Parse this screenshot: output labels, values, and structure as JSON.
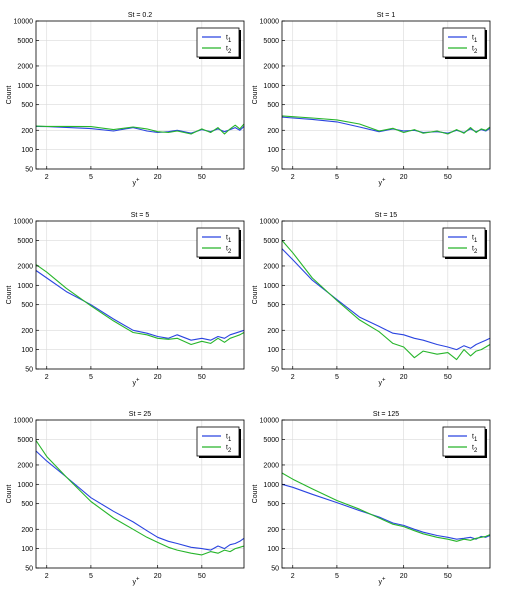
{
  "chart_data": [
    {
      "type": "line",
      "title": "St = 0.2",
      "xlabel": "y+",
      "ylabel": "Count",
      "xscale": "log",
      "yscale": "log",
      "xlim": [
        1.6,
        120
      ],
      "ylim": [
        50,
        10000
      ],
      "xticks": [
        2,
        5,
        20,
        50
      ],
      "yticks": [
        50,
        100,
        200,
        500,
        1000,
        2000,
        5000,
        10000
      ],
      "grid": true,
      "legend_position": "top-right",
      "series": [
        {
          "name": "t1",
          "color": "#2a44e0",
          "x": [
            1.6,
            2,
            3,
            5,
            8,
            12,
            16,
            20,
            25,
            30,
            40,
            50,
            60,
            70,
            80,
            90,
            100,
            110,
            120
          ],
          "y": [
            230,
            228,
            222,
            212,
            195,
            220,
            195,
            185,
            190,
            200,
            180,
            205,
            190,
            210,
            190,
            205,
            220,
            200,
            230
          ]
        },
        {
          "name": "t2",
          "color": "#27b52b",
          "x": [
            1.6,
            2,
            3,
            5,
            8,
            12,
            16,
            20,
            25,
            30,
            40,
            50,
            60,
            70,
            80,
            90,
            100,
            110,
            120
          ],
          "y": [
            232,
            230,
            230,
            228,
            205,
            225,
            210,
            190,
            185,
            195,
            175,
            210,
            185,
            220,
            175,
            210,
            240,
            210,
            250
          ]
        }
      ]
    },
    {
      "type": "line",
      "title": "St = 1",
      "xlabel": "y+",
      "ylabel": "Count",
      "xscale": "log",
      "yscale": "log",
      "xlim": [
        1.6,
        120
      ],
      "ylim": [
        50,
        10000
      ],
      "xticks": [
        2,
        5,
        20,
        50
      ],
      "yticks": [
        50,
        100,
        200,
        500,
        1000,
        2000,
        5000,
        10000
      ],
      "grid": true,
      "legend_position": "top-right",
      "series": [
        {
          "name": "t1",
          "color": "#2a44e0",
          "x": [
            1.6,
            2,
            3,
            5,
            8,
            12,
            16,
            20,
            25,
            30,
            40,
            50,
            60,
            70,
            80,
            90,
            100,
            110,
            120
          ],
          "y": [
            320,
            310,
            295,
            270,
            225,
            190,
            210,
            195,
            200,
            185,
            190,
            180,
            200,
            185,
            210,
            190,
            205,
            195,
            215
          ]
        },
        {
          "name": "t2",
          "color": "#27b52b",
          "x": [
            1.6,
            2,
            3,
            5,
            8,
            12,
            16,
            20,
            25,
            30,
            40,
            50,
            60,
            70,
            80,
            90,
            100,
            110,
            120
          ],
          "y": [
            335,
            325,
            310,
            290,
            250,
            195,
            215,
            185,
            205,
            180,
            195,
            175,
            205,
            180,
            220,
            185,
            210,
            200,
            225
          ]
        }
      ]
    },
    {
      "type": "line",
      "title": "St = 5",
      "xlabel": "y+",
      "ylabel": "Count",
      "xscale": "log",
      "yscale": "log",
      "xlim": [
        1.6,
        120
      ],
      "ylim": [
        50,
        10000
      ],
      "xticks": [
        2,
        5,
        20,
        50
      ],
      "yticks": [
        50,
        100,
        200,
        500,
        1000,
        2000,
        5000,
        10000
      ],
      "grid": true,
      "legend_position": "top-right",
      "series": [
        {
          "name": "t1",
          "color": "#2a44e0",
          "x": [
            1.6,
            2,
            3,
            5,
            8,
            12,
            16,
            20,
            25,
            30,
            40,
            50,
            60,
            70,
            80,
            90,
            100,
            110,
            120
          ],
          "y": [
            1700,
            1300,
            800,
            500,
            300,
            200,
            180,
            160,
            150,
            170,
            140,
            150,
            140,
            160,
            150,
            170,
            180,
            190,
            200
          ]
        },
        {
          "name": "t2",
          "color": "#27b52b",
          "x": [
            1.6,
            2,
            3,
            5,
            8,
            12,
            16,
            20,
            25,
            30,
            40,
            50,
            60,
            70,
            80,
            90,
            100,
            110,
            120
          ],
          "y": [
            2100,
            1600,
            900,
            480,
            280,
            185,
            170,
            150,
            145,
            150,
            120,
            135,
            125,
            150,
            130,
            150,
            160,
            170,
            185
          ]
        }
      ]
    },
    {
      "type": "line",
      "title": "St = 15",
      "xlabel": "y+",
      "ylabel": "Count",
      "xscale": "log",
      "yscale": "log",
      "xlim": [
        1.6,
        120
      ],
      "ylim": [
        50,
        10000
      ],
      "xticks": [
        2,
        5,
        20,
        50
      ],
      "yticks": [
        50,
        100,
        200,
        500,
        1000,
        2000,
        5000,
        10000
      ],
      "grid": true,
      "legend_position": "top-right",
      "series": [
        {
          "name": "t1",
          "color": "#2a44e0",
          "x": [
            1.6,
            2,
            3,
            5,
            8,
            12,
            16,
            20,
            25,
            30,
            40,
            50,
            60,
            70,
            80,
            90,
            100,
            110,
            120
          ],
          "y": [
            3700,
            2500,
            1200,
            600,
            320,
            230,
            180,
            170,
            150,
            140,
            120,
            110,
            100,
            115,
            105,
            120,
            130,
            140,
            150
          ]
        },
        {
          "name": "t2",
          "color": "#27b52b",
          "x": [
            1.6,
            2,
            3,
            5,
            8,
            12,
            16,
            20,
            25,
            30,
            40,
            50,
            60,
            70,
            80,
            90,
            100,
            110,
            120
          ],
          "y": [
            5000,
            3200,
            1300,
            580,
            290,
            190,
            125,
            110,
            75,
            95,
            85,
            90,
            70,
            100,
            80,
            95,
            100,
            110,
            120
          ]
        }
      ]
    },
    {
      "type": "line",
      "title": "St = 25",
      "xlabel": "y+",
      "ylabel": "Count",
      "xscale": "log",
      "yscale": "log",
      "xlim": [
        1.6,
        120
      ],
      "ylim": [
        50,
        10000
      ],
      "xticks": [
        2,
        5,
        20,
        50
      ],
      "yticks": [
        50,
        100,
        200,
        500,
        1000,
        2000,
        5000,
        10000
      ],
      "grid": true,
      "legend_position": "top-right",
      "series": [
        {
          "name": "t1",
          "color": "#2a44e0",
          "x": [
            1.6,
            2,
            3,
            5,
            8,
            12,
            16,
            20,
            25,
            30,
            40,
            50,
            60,
            70,
            80,
            90,
            100,
            110,
            120
          ],
          "y": [
            3300,
            2300,
            1300,
            620,
            380,
            260,
            190,
            150,
            130,
            120,
            105,
            100,
            95,
            110,
            100,
            115,
            120,
            130,
            145
          ]
        },
        {
          "name": "t2",
          "color": "#27b52b",
          "x": [
            1.6,
            2,
            3,
            5,
            8,
            12,
            16,
            20,
            25,
            30,
            40,
            50,
            60,
            70,
            80,
            90,
            100,
            110,
            120
          ],
          "y": [
            4800,
            2700,
            1300,
            540,
            300,
            200,
            150,
            125,
            105,
            95,
            85,
            80,
            90,
            85,
            95,
            90,
            100,
            105,
            110
          ]
        }
      ]
    },
    {
      "type": "line",
      "title": "St = 125",
      "xlabel": "y+",
      "ylabel": "Count",
      "xscale": "log",
      "yscale": "log",
      "xlim": [
        1.6,
        120
      ],
      "ylim": [
        50,
        10000
      ],
      "xticks": [
        2,
        5,
        20,
        50
      ],
      "yticks": [
        50,
        100,
        200,
        500,
        1000,
        2000,
        5000,
        10000
      ],
      "grid": true,
      "legend_position": "top-right",
      "series": [
        {
          "name": "t1",
          "color": "#2a44e0",
          "x": [
            1.6,
            2,
            3,
            5,
            8,
            12,
            16,
            20,
            25,
            30,
            40,
            50,
            60,
            70,
            80,
            90,
            100,
            110,
            120
          ],
          "y": [
            1000,
            900,
            700,
            520,
            390,
            310,
            250,
            230,
            200,
            180,
            160,
            150,
            140,
            145,
            150,
            140,
            155,
            150,
            160
          ]
        },
        {
          "name": "t2",
          "color": "#27b52b",
          "x": [
            1.6,
            2,
            3,
            5,
            8,
            12,
            16,
            20,
            25,
            30,
            40,
            50,
            60,
            70,
            80,
            90,
            100,
            110,
            120
          ],
          "y": [
            1500,
            1200,
            850,
            560,
            410,
            300,
            240,
            220,
            190,
            170,
            150,
            140,
            130,
            140,
            135,
            145,
            150,
            155,
            165
          ]
        }
      ]
    }
  ]
}
